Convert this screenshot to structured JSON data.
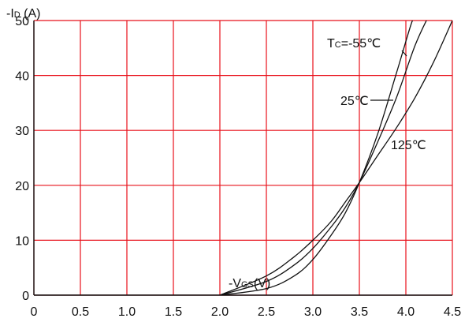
{
  "chart_data": {
    "type": "line",
    "ylabel_main": "-I",
    "ylabel_sub": "D",
    "ylabel_unit": " (A)",
    "xlabel_main": "-V",
    "xlabel_sub": "GS",
    "xlabel_unit": "(V)",
    "xlim": [
      0,
      4.5
    ],
    "ylim": [
      0,
      50
    ],
    "xticks": [
      "0",
      "0.5",
      "1.0",
      "1.5",
      "2.0",
      "2.5",
      "3.0",
      "3.5",
      "4.0",
      "4.5"
    ],
    "yticks": [
      "0",
      "10",
      "20",
      "30",
      "40",
      "50"
    ],
    "grid": true,
    "grid_color": "#e8101a",
    "series": [
      {
        "name": "Tc=-55℃",
        "name_main": "T",
        "name_sub": "C",
        "name_rest": "=-55℃",
        "x": [
          2.0,
          2.5,
          2.8,
          3.0,
          3.2,
          3.35,
          3.5,
          3.7,
          3.9,
          4.05,
          4.1
        ],
        "y": [
          0,
          1.2,
          3.5,
          6.5,
          11,
          15,
          20.5,
          29.5,
          40.5,
          49,
          51
        ]
      },
      {
        "name": "25℃",
        "x": [
          2.0,
          2.5,
          2.8,
          3.0,
          3.2,
          3.35,
          3.5,
          3.7,
          3.9,
          4.1,
          4.25
        ],
        "y": [
          0,
          2.5,
          5.5,
          8.5,
          12.5,
          16,
          20.5,
          28,
          36,
          45.5,
          51
        ]
      },
      {
        "name": "125℃",
        "x": [
          2.0,
          2.5,
          2.8,
          3.0,
          3.2,
          3.35,
          3.5,
          3.7,
          3.9,
          4.1,
          4.3,
          4.5
        ],
        "y": [
          0,
          3.5,
          7,
          10,
          13.5,
          17,
          20.5,
          25.5,
          30.5,
          36,
          42.5,
          50
        ]
      }
    ]
  }
}
